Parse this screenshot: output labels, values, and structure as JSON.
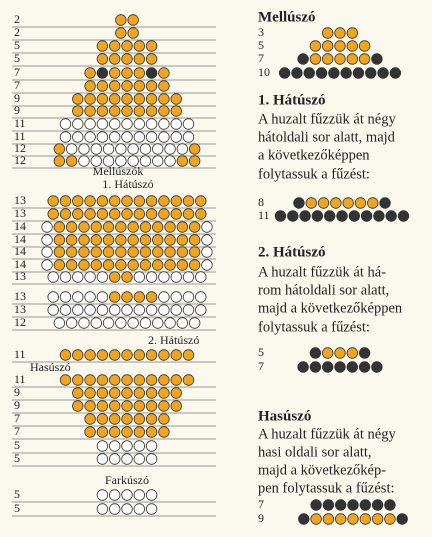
{
  "left": {
    "rows": [
      "2",
      "2",
      "5",
      "5",
      "7",
      "7",
      "9",
      "9",
      "11",
      "11",
      "12",
      "12",
      "13",
      "13",
      "14",
      "14",
      "14",
      "14",
      "13",
      "13",
      "13",
      "12",
      "11",
      "11",
      "9",
      "9",
      "7",
      "7",
      "5",
      "5",
      "5",
      "5"
    ],
    "labels": {
      "pectoral": "Mellúszók",
      "dorsal1": "1. Hátúszó",
      "dorsal2": "2. Hátúszó",
      "ventral": "Hasúszó",
      "tail": "Farkúszó"
    }
  },
  "sections": [
    {
      "title": "Mellúszó",
      "lines": [],
      "rows": [
        "3",
        "5",
        "7",
        "10"
      ]
    },
    {
      "title": "1. Hátúszó",
      "lines": [
        "A huzalt fűzzük át négy",
        "hátoldali sor alatt, majd",
        "a következőképpen",
        "folytassuk a fűzést:"
      ],
      "rows": [
        "8",
        "11"
      ]
    },
    {
      "title": "2. Hátúszó",
      "lines": [
        "A huzalt fűzzük át há-",
        "rom hátoldali sor alatt,",
        "majd a következőképpen",
        "folytassuk a fűzést:"
      ],
      "rows": [
        "5",
        "7"
      ]
    },
    {
      "title": "Hasúszó",
      "lines": [
        "A huzalt fűzzük át négy",
        "hasi oldali sor alatt,",
        "majd a következőkép-",
        "pen folytassuk a fűzést:"
      ],
      "rows": [
        "7",
        "9"
      ]
    }
  ]
}
